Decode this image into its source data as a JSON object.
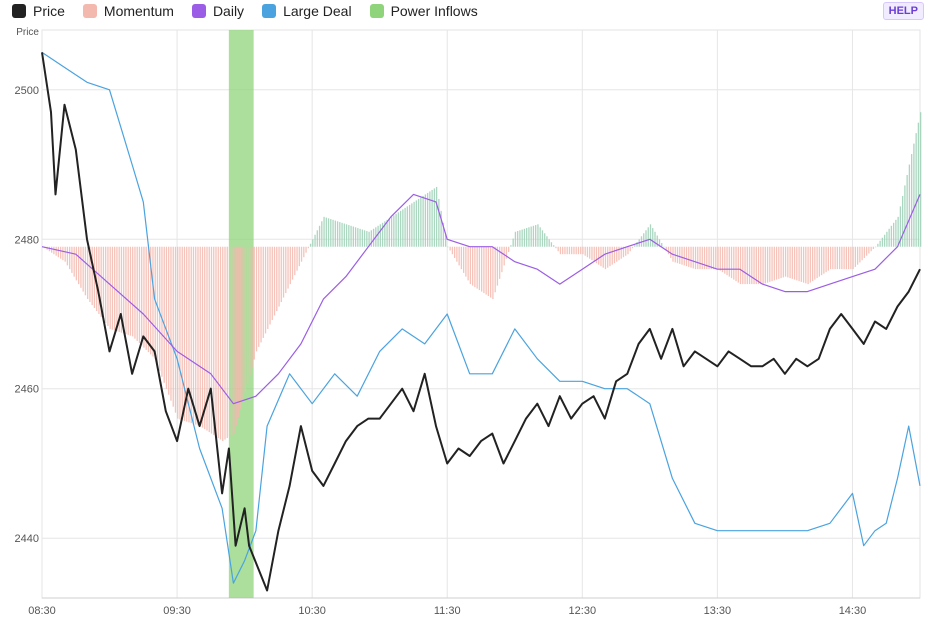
{
  "legend": [
    {
      "label": "Price",
      "color": "#222222"
    },
    {
      "label": "Momentum",
      "color": "#f3b8ae"
    },
    {
      "label": "Daily",
      "color": "#9b5de5"
    },
    {
      "label": "Large Deal",
      "color": "#4aa3df"
    },
    {
      "label": "Power Inflows",
      "color": "#8fd47a"
    }
  ],
  "help_label": "HELP",
  "chart_data": {
    "type": "line",
    "ylabel": "Price",
    "ylim": [
      2432,
      2508
    ],
    "yticks": [
      2440,
      2460,
      2480,
      2500
    ],
    "x_labels": [
      "08:30",
      "09:30",
      "10:30",
      "11:30",
      "12:30",
      "13:30",
      "14:30"
    ],
    "time_range": [
      "08:30",
      "15:00"
    ],
    "grid": true,
    "baseline": 2479,
    "power_inflows": [
      {
        "start": "09:53",
        "end": "10:04"
      }
    ],
    "series": [
      {
        "name": "Price",
        "color": "#222222",
        "points": [
          [
            "08:30",
            2505
          ],
          [
            "08:34",
            2497
          ],
          [
            "08:36",
            2486
          ],
          [
            "08:40",
            2498
          ],
          [
            "08:45",
            2492
          ],
          [
            "08:50",
            2480
          ],
          [
            "08:55",
            2473
          ],
          [
            "09:00",
            2465
          ],
          [
            "09:05",
            2470
          ],
          [
            "09:10",
            2462
          ],
          [
            "09:15",
            2467
          ],
          [
            "09:20",
            2465
          ],
          [
            "09:25",
            2457
          ],
          [
            "09:30",
            2453
          ],
          [
            "09:35",
            2460
          ],
          [
            "09:40",
            2455
          ],
          [
            "09:45",
            2460
          ],
          [
            "09:50",
            2446
          ],
          [
            "09:53",
            2452
          ],
          [
            "09:56",
            2439
          ],
          [
            "10:00",
            2444
          ],
          [
            "10:02",
            2439
          ],
          [
            "10:06",
            2436
          ],
          [
            "10:10",
            2433
          ],
          [
            "10:15",
            2441
          ],
          [
            "10:20",
            2447
          ],
          [
            "10:25",
            2455
          ],
          [
            "10:30",
            2449
          ],
          [
            "10:35",
            2447
          ],
          [
            "10:40",
            2450
          ],
          [
            "10:45",
            2453
          ],
          [
            "10:50",
            2455
          ],
          [
            "10:55",
            2456
          ],
          [
            "11:00",
            2456
          ],
          [
            "11:05",
            2458
          ],
          [
            "11:10",
            2460
          ],
          [
            "11:15",
            2457
          ],
          [
            "11:20",
            2462
          ],
          [
            "11:25",
            2455
          ],
          [
            "11:30",
            2450
          ],
          [
            "11:35",
            2452
          ],
          [
            "11:40",
            2451
          ],
          [
            "11:45",
            2453
          ],
          [
            "11:50",
            2454
          ],
          [
            "11:55",
            2450
          ],
          [
            "12:00",
            2453
          ],
          [
            "12:05",
            2456
          ],
          [
            "12:10",
            2458
          ],
          [
            "12:15",
            2455
          ],
          [
            "12:20",
            2459
          ],
          [
            "12:25",
            2456
          ],
          [
            "12:30",
            2458
          ],
          [
            "12:35",
            2459
          ],
          [
            "12:40",
            2456
          ],
          [
            "12:45",
            2461
          ],
          [
            "12:50",
            2462
          ],
          [
            "12:55",
            2466
          ],
          [
            "13:00",
            2468
          ],
          [
            "13:05",
            2464
          ],
          [
            "13:10",
            2468
          ],
          [
            "13:15",
            2463
          ],
          [
            "13:20",
            2465
          ],
          [
            "13:25",
            2464
          ],
          [
            "13:30",
            2463
          ],
          [
            "13:35",
            2465
          ],
          [
            "13:40",
            2464
          ],
          [
            "13:45",
            2463
          ],
          [
            "13:50",
            2463
          ],
          [
            "13:55",
            2464
          ],
          [
            "14:00",
            2462
          ],
          [
            "14:05",
            2464
          ],
          [
            "14:10",
            2463
          ],
          [
            "14:15",
            2464
          ],
          [
            "14:20",
            2468
          ],
          [
            "14:25",
            2470
          ],
          [
            "14:30",
            2468
          ],
          [
            "14:35",
            2466
          ],
          [
            "14:40",
            2469
          ],
          [
            "14:45",
            2468
          ],
          [
            "14:50",
            2471
          ],
          [
            "14:55",
            2473
          ],
          [
            "15:00",
            2476
          ]
        ]
      },
      {
        "name": "Daily",
        "color": "#9b5de5",
        "points": [
          [
            "08:30",
            2479
          ],
          [
            "08:45",
            2478
          ],
          [
            "09:00",
            2474
          ],
          [
            "09:15",
            2470
          ],
          [
            "09:30",
            2465
          ],
          [
            "09:45",
            2462
          ],
          [
            "09:55",
            2458
          ],
          [
            "10:05",
            2459
          ],
          [
            "10:15",
            2462
          ],
          [
            "10:25",
            2466
          ],
          [
            "10:35",
            2472
          ],
          [
            "10:45",
            2475
          ],
          [
            "10:55",
            2479
          ],
          [
            "11:05",
            2483
          ],
          [
            "11:15",
            2486
          ],
          [
            "11:25",
            2485
          ],
          [
            "11:30",
            2480
          ],
          [
            "11:40",
            2479
          ],
          [
            "11:50",
            2479
          ],
          [
            "12:00",
            2477
          ],
          [
            "12:10",
            2476
          ],
          [
            "12:20",
            2474
          ],
          [
            "12:30",
            2476
          ],
          [
            "12:40",
            2478
          ],
          [
            "12:50",
            2479
          ],
          [
            "13:00",
            2480
          ],
          [
            "13:10",
            2478
          ],
          [
            "13:20",
            2477
          ],
          [
            "13:30",
            2476
          ],
          [
            "13:40",
            2476
          ],
          [
            "13:50",
            2474
          ],
          [
            "14:00",
            2473
          ],
          [
            "14:10",
            2473
          ],
          [
            "14:20",
            2474
          ],
          [
            "14:30",
            2475
          ],
          [
            "14:40",
            2476
          ],
          [
            "14:50",
            2479
          ],
          [
            "15:00",
            2486
          ]
        ]
      },
      {
        "name": "Large Deal",
        "color": "#4aa3df",
        "points": [
          [
            "08:30",
            2505
          ],
          [
            "08:40",
            2503
          ],
          [
            "08:50",
            2501
          ],
          [
            "09:00",
            2500
          ],
          [
            "09:10",
            2490
          ],
          [
            "09:15",
            2485
          ],
          [
            "09:20",
            2472
          ],
          [
            "09:30",
            2464
          ],
          [
            "09:40",
            2452
          ],
          [
            "09:50",
            2444
          ],
          [
            "09:55",
            2434
          ],
          [
            "10:00",
            2437
          ],
          [
            "10:05",
            2441
          ],
          [
            "10:10",
            2455
          ],
          [
            "10:20",
            2462
          ],
          [
            "10:30",
            2458
          ],
          [
            "10:40",
            2462
          ],
          [
            "10:50",
            2459
          ],
          [
            "11:00",
            2465
          ],
          [
            "11:10",
            2468
          ],
          [
            "11:20",
            2466
          ],
          [
            "11:30",
            2470
          ],
          [
            "11:40",
            2462
          ],
          [
            "11:50",
            2462
          ],
          [
            "12:00",
            2468
          ],
          [
            "12:10",
            2464
          ],
          [
            "12:20",
            2461
          ],
          [
            "12:30",
            2461
          ],
          [
            "12:40",
            2460
          ],
          [
            "12:50",
            2460
          ],
          [
            "13:00",
            2458
          ],
          [
            "13:10",
            2448
          ],
          [
            "13:20",
            2442
          ],
          [
            "13:30",
            2441
          ],
          [
            "13:40",
            2441
          ],
          [
            "13:50",
            2441
          ],
          [
            "14:00",
            2441
          ],
          [
            "14:10",
            2441
          ],
          [
            "14:20",
            2442
          ],
          [
            "14:30",
            2446
          ],
          [
            "14:35",
            2439
          ],
          [
            "14:40",
            2441
          ],
          [
            "14:45",
            2442
          ],
          [
            "14:50",
            2448
          ],
          [
            "14:55",
            2455
          ],
          [
            "15:00",
            2447
          ]
        ]
      },
      {
        "name": "Momentum",
        "color": "#f3b8ae",
        "positive_color": "#9ccfb5",
        "points": [
          [
            "08:30",
            2479
          ],
          [
            "08:40",
            2477
          ],
          [
            "08:50",
            2472
          ],
          [
            "09:00",
            2468
          ],
          [
            "09:10",
            2467
          ],
          [
            "09:20",
            2464
          ],
          [
            "09:30",
            2456
          ],
          [
            "09:40",
            2455
          ],
          [
            "09:50",
            2453
          ],
          [
            "09:55",
            2454
          ],
          [
            "10:05",
            2465
          ],
          [
            "10:15",
            2471
          ],
          [
            "10:25",
            2477
          ],
          [
            "10:35",
            2483
          ],
          [
            "10:45",
            2482
          ],
          [
            "10:55",
            2481
          ],
          [
            "11:05",
            2483
          ],
          [
            "11:15",
            2485
          ],
          [
            "11:25",
            2487
          ],
          [
            "11:30",
            2479
          ],
          [
            "11:40",
            2474
          ],
          [
            "11:50",
            2472
          ],
          [
            "12:00",
            2481
          ],
          [
            "12:10",
            2482
          ],
          [
            "12:20",
            2478
          ],
          [
            "12:30",
            2478
          ],
          [
            "12:40",
            2476
          ],
          [
            "12:50",
            2478
          ],
          [
            "13:00",
            2482
          ],
          [
            "13:10",
            2477
          ],
          [
            "13:20",
            2476
          ],
          [
            "13:30",
            2476
          ],
          [
            "13:40",
            2474
          ],
          [
            "13:50",
            2474
          ],
          [
            "14:00",
            2475
          ],
          [
            "14:10",
            2474
          ],
          [
            "14:20",
            2476
          ],
          [
            "14:30",
            2476
          ],
          [
            "14:40",
            2479
          ],
          [
            "14:50",
            2483
          ],
          [
            "15:00",
            2497
          ]
        ]
      }
    ]
  }
}
